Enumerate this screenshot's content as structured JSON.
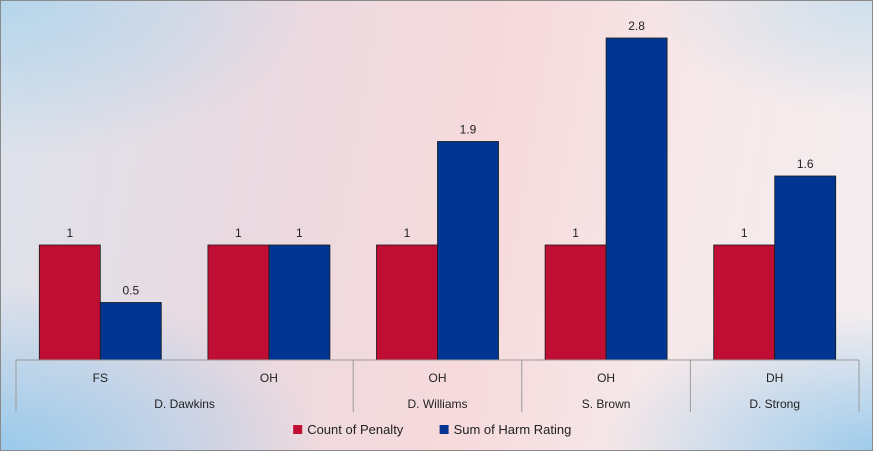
{
  "chart_data": {
    "type": "bar",
    "title": "",
    "xlabel": "",
    "ylabel": "",
    "ylim": [
      0,
      3
    ],
    "categories": [
      {
        "sub": "FS",
        "group": "D. Dawkins"
      },
      {
        "sub": "OH",
        "group": "D. Dawkins"
      },
      {
        "sub": "OH",
        "group": "D. Williams"
      },
      {
        "sub": "OH",
        "group": "S. Brown"
      },
      {
        "sub": "DH",
        "group": "D. Strong"
      }
    ],
    "groups": [
      "D. Dawkins",
      "D. Williams",
      "S. Brown",
      "D. Strong"
    ],
    "series": [
      {
        "name": "Count of Penalty",
        "color": "#c00d33",
        "values": [
          1,
          1,
          1,
          1,
          1
        ],
        "labels": [
          "1",
          "1",
          "1",
          "1",
          "1"
        ]
      },
      {
        "name": "Sum of Harm Rating",
        "color": "#003592",
        "values": [
          0.5,
          1,
          1.9,
          2.8,
          1.6
        ],
        "labels": [
          "0.5",
          "1",
          "1.9",
          "2.8",
          "1.6"
        ]
      }
    ],
    "legend_position": "bottom",
    "grid": false
  }
}
